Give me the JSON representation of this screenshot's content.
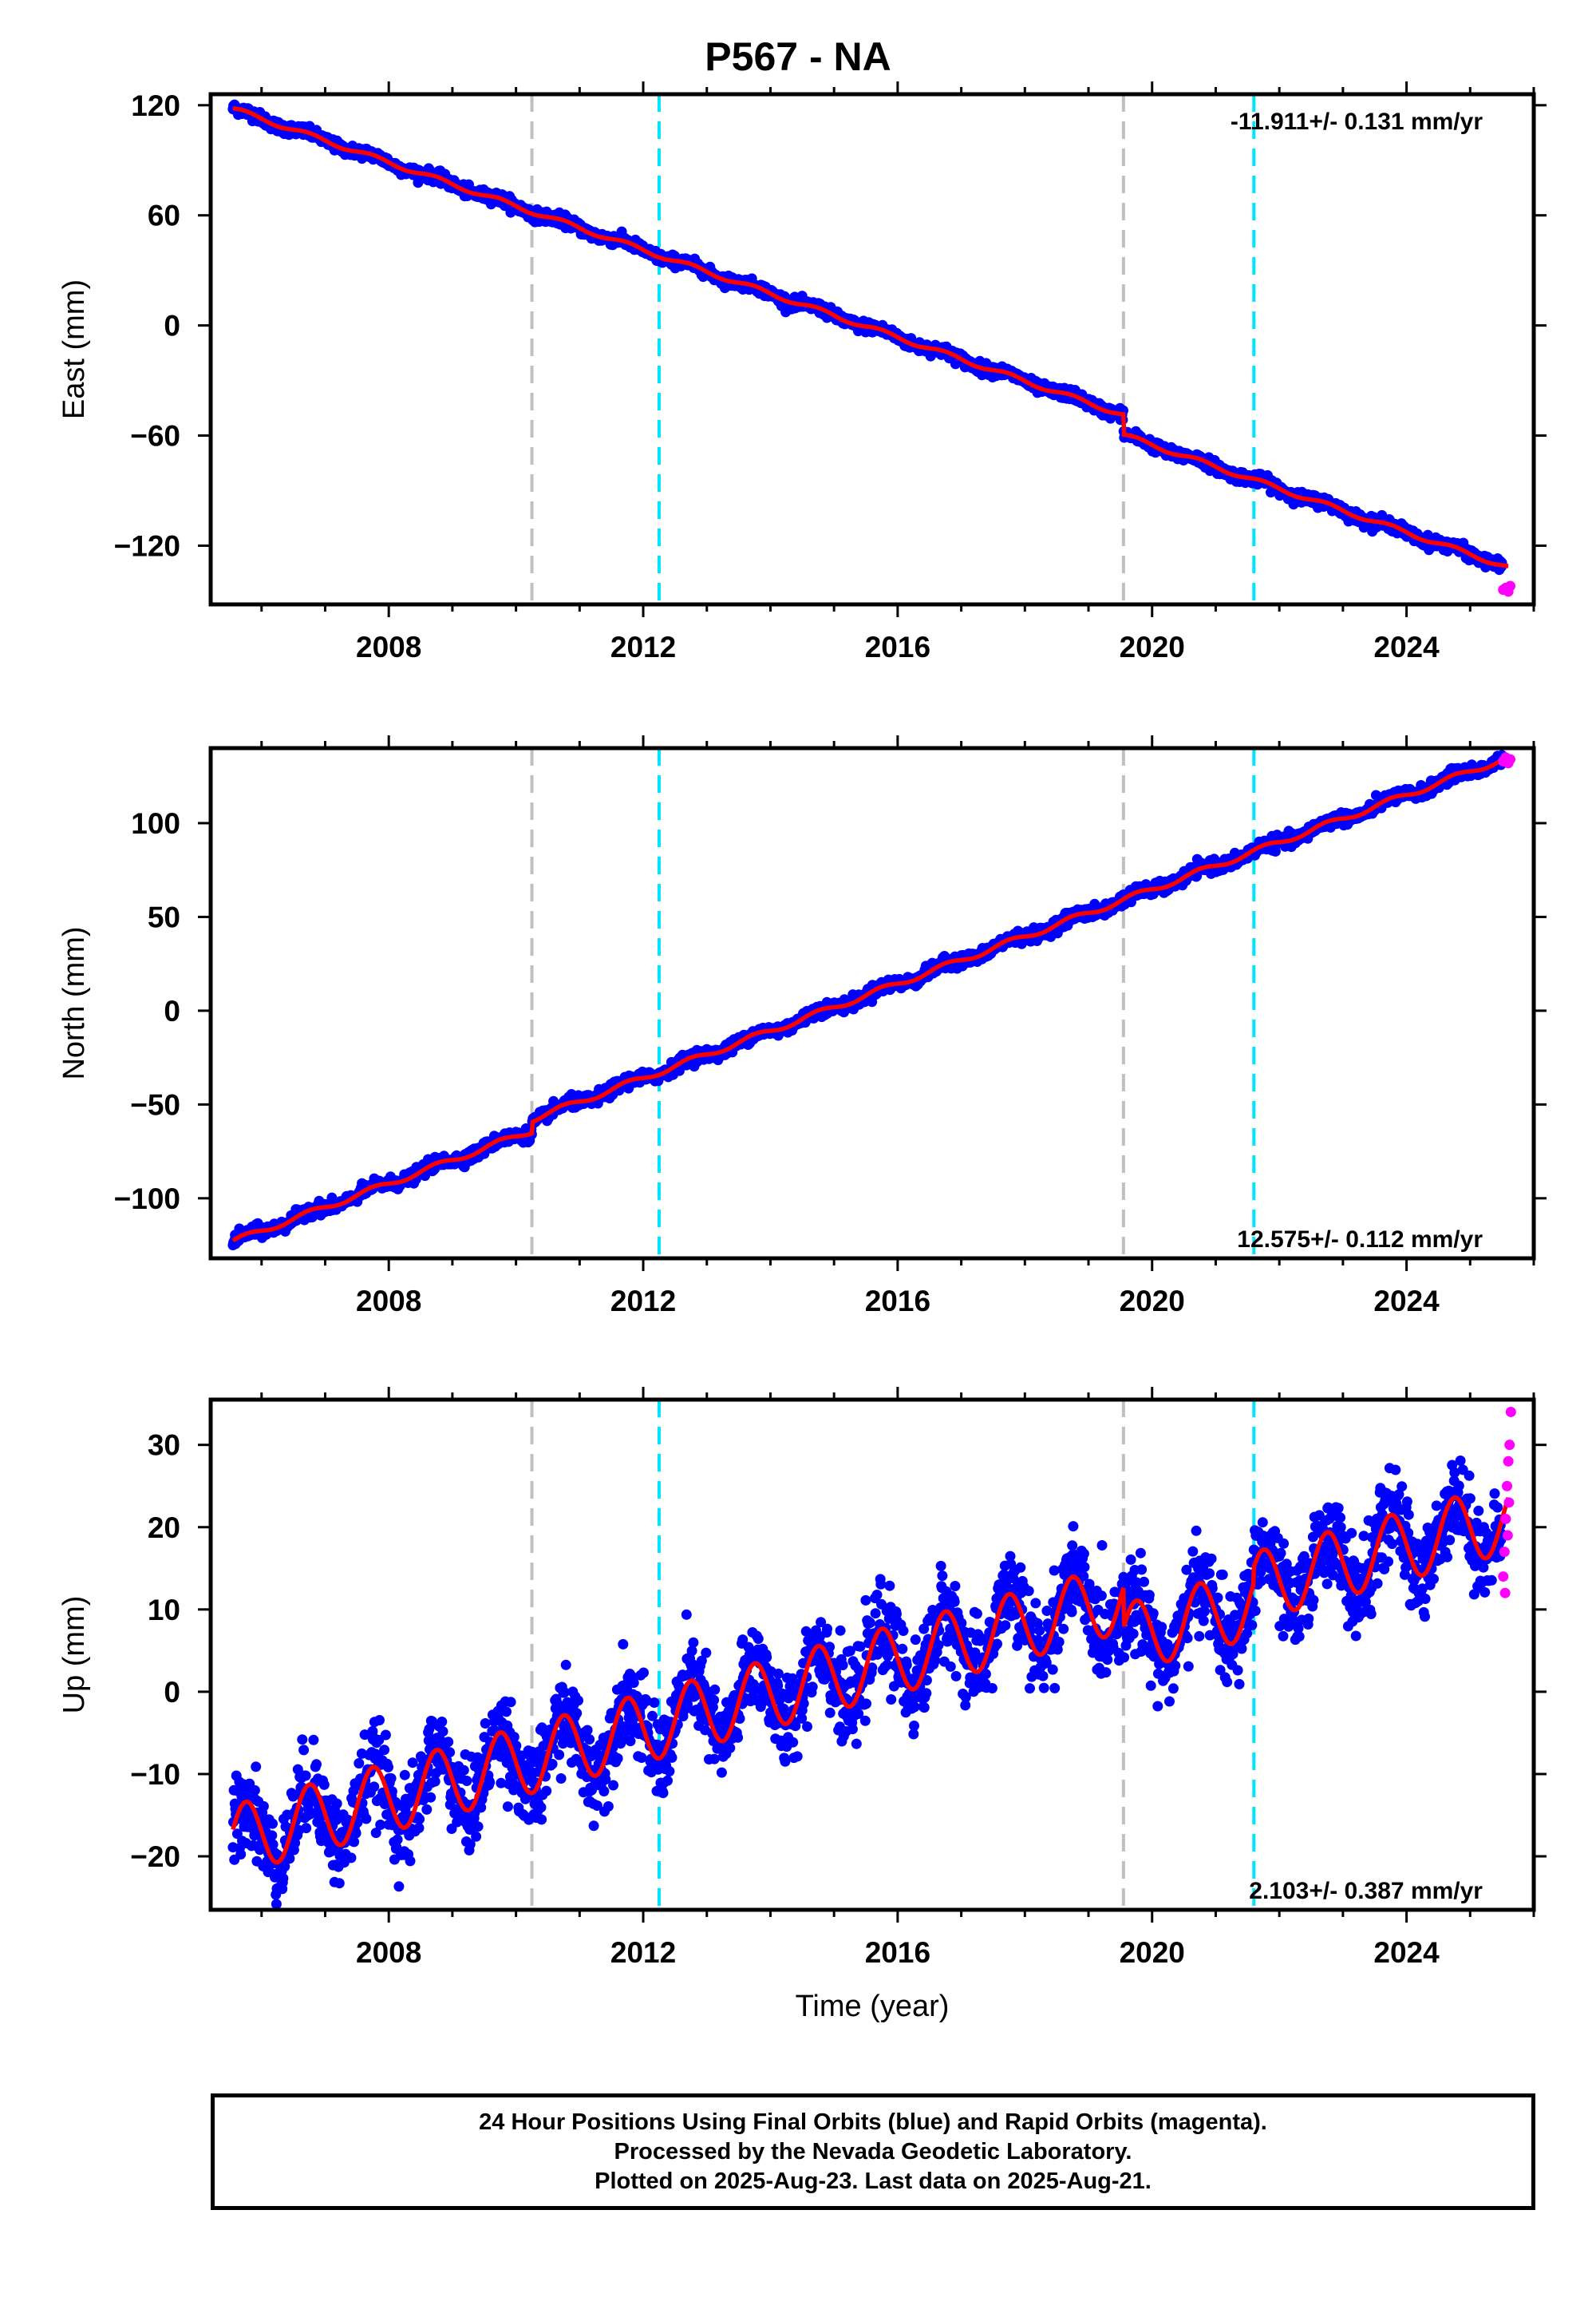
{
  "title": "P567 - NA",
  "footer": {
    "line1": "24 Hour Positions Using Final Orbits (blue) and Rapid Orbits (magenta).",
    "line2": "Processed by the Nevada Geodetic Laboratory.",
    "line3": "Plotted on 2025-Aug-23. Last data on 2025-Aug-21."
  },
  "colors": {
    "final_orbits": "#0000ff",
    "rapid_orbits": "#ff00ff",
    "model_fit": "#ff0000",
    "gray_marker": "#c0c0c0",
    "cyan_marker": "#00e5ff"
  },
  "chart_data": [
    {
      "type": "scatter",
      "component": "east",
      "ylabel": "East (mm)",
      "xlabel": "",
      "xlim": [
        2005.2,
        2026.0
      ],
      "ylim": [
        -152,
        126
      ],
      "yticks": [
        120,
        60,
        0,
        -60,
        -120
      ],
      "xticks": [
        2008,
        2012,
        2016,
        2020,
        2024
      ],
      "rate_text": "-11.911+/- 0.131 mm/yr",
      "rate_position": "top-right",
      "vertical_lines": [
        {
          "x": 2010.25,
          "color": "gray"
        },
        {
          "x": 2012.25,
          "color": "cyan"
        },
        {
          "x": 2019.55,
          "color": "gray"
        },
        {
          "x": 2021.6,
          "color": "cyan"
        }
      ],
      "trend": {
        "start_x": 2005.55,
        "start_y": 118,
        "rate": -11.911,
        "offsets": [
          {
            "x": 2019.55,
            "dy": -11
          }
        ],
        "seasonal_amplitude": 1.2,
        "noise": 1.5
      },
      "rapid_points": [
        [
          2025.52,
          -144
        ],
        [
          2025.56,
          -143
        ],
        [
          2025.6,
          -145
        ],
        [
          2025.63,
          -142
        ]
      ]
    },
    {
      "type": "scatter",
      "component": "north",
      "ylabel": "North (mm)",
      "xlabel": "",
      "xlim": [
        2005.2,
        2026.0
      ],
      "ylim": [
        -132,
        140
      ],
      "yticks": [
        100,
        50,
        0,
        -50,
        -100
      ],
      "xticks": [
        2008,
        2012,
        2016,
        2020,
        2024
      ],
      "rate_text": "12.575+/- 0.112 mm/yr",
      "rate_position": "bottom-right",
      "vertical_lines": [
        {
          "x": 2010.25,
          "color": "gray"
        },
        {
          "x": 2012.25,
          "color": "cyan"
        },
        {
          "x": 2019.55,
          "color": "gray"
        },
        {
          "x": 2021.6,
          "color": "cyan"
        }
      ],
      "trend": {
        "start_x": 2005.55,
        "start_y": -123,
        "rate": 12.575,
        "offsets": [
          {
            "x": 2010.25,
            "dy": 6
          }
        ],
        "seasonal_amplitude": 1.5,
        "noise": 1.6
      },
      "rapid_points": [
        [
          2025.52,
          133
        ],
        [
          2025.56,
          135
        ],
        [
          2025.6,
          132
        ],
        [
          2025.63,
          134
        ]
      ]
    },
    {
      "type": "scatter",
      "component": "up",
      "ylabel": "Up (mm)",
      "xlabel": "Time (year)",
      "xlim": [
        2005.2,
        2026.0
      ],
      "ylim": [
        -26.5,
        35.5
      ],
      "yticks": [
        30,
        20,
        10,
        0,
        -10,
        -20
      ],
      "xticks": [
        2008,
        2012,
        2016,
        2020,
        2024
      ],
      "rate_text": "2.103+/- 0.387 mm/yr",
      "rate_position": "bottom-right",
      "vertical_lines": [
        {
          "x": 2010.25,
          "color": "gray"
        },
        {
          "x": 2012.25,
          "color": "cyan"
        },
        {
          "x": 2019.55,
          "color": "gray"
        },
        {
          "x": 2021.6,
          "color": "cyan"
        }
      ],
      "trend": {
        "start_x": 2005.55,
        "start_y": -18,
        "rate": 2.103,
        "offsets": [
          {
            "x": 2019.55,
            "dy": -5
          },
          {
            "x": 2021.6,
            "dy": 2
          }
        ],
        "seasonal_amplitude": 4.2,
        "noise": 2.6
      },
      "rapid_points": [
        [
          2025.52,
          14
        ],
        [
          2025.54,
          17
        ],
        [
          2025.56,
          21
        ],
        [
          2025.58,
          25
        ],
        [
          2025.6,
          28
        ],
        [
          2025.62,
          30
        ],
        [
          2025.64,
          34
        ],
        [
          2025.55,
          12
        ],
        [
          2025.59,
          19
        ],
        [
          2025.61,
          23
        ]
      ]
    }
  ]
}
